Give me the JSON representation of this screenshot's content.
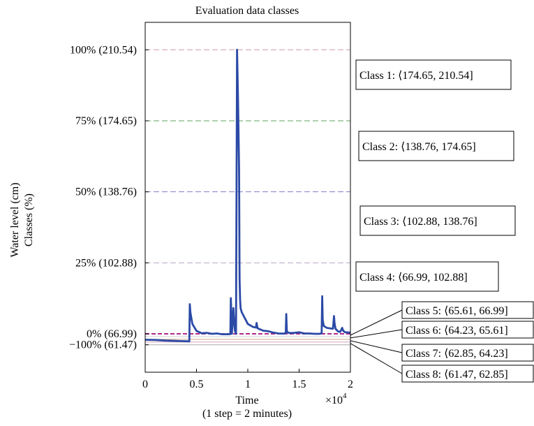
{
  "chart_data": {
    "type": "line",
    "title": "Evaluation data classes",
    "ylabel_lines": [
      "Water level (cm)",
      "Classes (%)"
    ],
    "xlabel": "Time",
    "xlabel_note": "(1 step = 2 minutes)",
    "x_multiplier": "×10",
    "x_multiplier_exp": "4",
    "xlim": [
      0,
      20000
    ],
    "ylim": [
      47.6,
      224.4
    ],
    "x_ticks": [
      {
        "value": 0,
        "label": "0"
      },
      {
        "value": 5000,
        "label": "0.5"
      },
      {
        "value": 10000,
        "label": "1"
      },
      {
        "value": 15000,
        "label": "1.5"
      },
      {
        "value": 20000,
        "label": "2"
      }
    ],
    "y_ticks": [
      {
        "value": 210.54,
        "label": "100% (210.54)"
      },
      {
        "value": 174.65,
        "label": "75% (174.65)"
      },
      {
        "value": 138.76,
        "label": "50% (138.76)"
      },
      {
        "value": 102.88,
        "label": "25% (102.88)"
      },
      {
        "value": 66.99,
        "label": "0% (66.99)"
      },
      {
        "value": 61.47,
        "label": "−100% (61.47)"
      }
    ],
    "threshold_lines": [
      {
        "value": 210.54,
        "color": "#d49aa2",
        "style": "dashed"
      },
      {
        "value": 174.65,
        "color": "#5fa35f",
        "style": "dashed"
      },
      {
        "value": 138.76,
        "color": "#7f7fc4",
        "style": "dashed"
      },
      {
        "value": 102.88,
        "color": "#b7a7c2",
        "style": "dashed"
      },
      {
        "value": 66.99,
        "color": "#b0288a",
        "style": "dashed"
      },
      {
        "value": 65.61,
        "color": "#cfcfcf",
        "style": "solid"
      },
      {
        "value": 64.23,
        "color": "#c9a88a",
        "style": "solid"
      },
      {
        "value": 62.85,
        "color": "#d8a0b8",
        "style": "solid"
      },
      {
        "value": 61.47,
        "color": "#aaaaaa",
        "style": "solid"
      }
    ],
    "series": [
      {
        "color": "#2b4aa6",
        "x": [
          0,
          1000,
          2000,
          3000,
          4300,
          4350,
          4400,
          4500,
          4600,
          5000,
          5500,
          6000,
          6500,
          7000,
          7500,
          8000,
          8300,
          8350,
          8450,
          8600,
          8700,
          8750,
          8850,
          8950,
          9050,
          9150,
          9200,
          9250,
          9300,
          9400,
          9600,
          9800,
          10000,
          10500,
          10800,
          10850,
          10950,
          11500,
          12000,
          12500,
          13000,
          13500,
          13700,
          13750,
          13800,
          13900,
          14200,
          14500,
          15000,
          15500,
          16000,
          16500,
          17000,
          17200,
          17250,
          17300,
          17400,
          17700,
          18000,
          18300,
          18400,
          18450,
          18550,
          18800,
          19000,
          19200,
          19300,
          19500,
          20000
        ],
        "y": [
          64.0,
          63.9,
          63.6,
          63.4,
          63.2,
          82.0,
          78.0,
          75.0,
          72.0,
          68.5,
          67.3,
          67.5,
          67.0,
          67.2,
          66.8,
          66.8,
          66.9,
          85.0,
          67.0,
          80.0,
          71.0,
          68.5,
          67.0,
          210.54,
          185.0,
          150.0,
          95.0,
          84.0,
          80.0,
          78.0,
          76.0,
          74.0,
          72.0,
          70.5,
          70.2,
          72.5,
          69.8,
          68.6,
          68.3,
          67.6,
          67.2,
          67.1,
          67.4,
          77.0,
          68.5,
          67.6,
          67.4,
          67.5,
          67.8,
          67.2,
          67.2,
          67.0,
          67.0,
          67.3,
          86.0,
          74.0,
          71.0,
          70.0,
          69.8,
          69.6,
          76.0,
          72.5,
          69.5,
          68.2,
          68.0,
          70.0,
          68.5,
          67.8,
          67.6
        ]
      }
    ],
    "class_labels": [
      {
        "text": "Class 1: ⟨174.65, 210.54]",
        "value": 192.6
      },
      {
        "text": "Class 2: ⟨138.76, 174.65]",
        "value": 156.7
      },
      {
        "text": "Class 3: ⟨102.88, 138.76]",
        "value": 120.8
      },
      {
        "text": "Class 4: ⟨66.99, 102.88]",
        "value": 84.9
      },
      {
        "text": "Class 5: ⟨65.61, 66.99]",
        "value": 66.3
      },
      {
        "text": "Class 6: ⟨64.23, 65.61]",
        "value": 64.92
      },
      {
        "text": "Class 7: ⟨62.85, 64.23]",
        "value": 63.54
      },
      {
        "text": "Class 8: ⟨61.47, 62.85]",
        "value": 62.16
      }
    ],
    "grid": false,
    "legend": "none"
  }
}
